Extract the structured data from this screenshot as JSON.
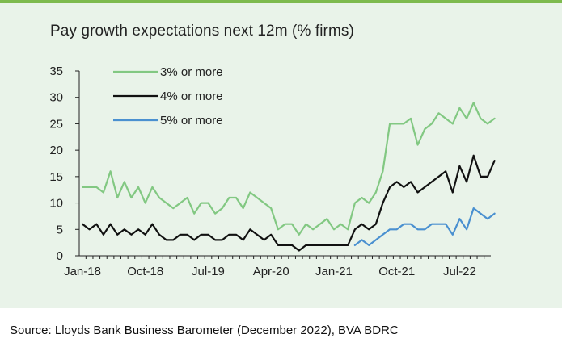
{
  "title": "Pay growth expectations next 12m (% firms)",
  "source": "Source: Lloyds Bank Business Barometer (December 2022), BVA BDRC",
  "colors": {
    "background": "#e9f3e9",
    "accent_rule": "#7dba4e"
  },
  "chart_data": {
    "type": "line",
    "title": "Pay growth expectations next 12m (% firms)",
    "xlabel": "",
    "ylabel": "",
    "ylim": [
      0,
      35
    ],
    "yticks": [
      "0",
      "5",
      "10",
      "15",
      "20",
      "25",
      "30",
      "35"
    ],
    "xtick_labels": [
      "Jan-18",
      "Oct-18",
      "Jul-19",
      "Apr-20",
      "Jan-21",
      "Oct-21",
      "Jul-22"
    ],
    "xtick_months": [
      "2018-01",
      "2018-10",
      "2019-07",
      "2020-04",
      "2021-01",
      "2021-10",
      "2022-07"
    ],
    "x_range": [
      "2018-01",
      "2022-11"
    ],
    "grid": false,
    "legend_position": "top-left",
    "series": [
      {
        "name": "3% or more",
        "color": "#82c882",
        "start": "2018-01",
        "values": [
          13,
          13,
          13,
          12,
          16,
          11,
          14,
          11,
          13,
          10,
          13,
          11,
          10,
          9,
          10,
          11,
          8,
          10,
          10,
          8,
          9,
          11,
          11,
          9,
          12,
          11,
          10,
          9,
          5,
          6,
          6,
          4,
          6,
          5,
          6,
          7,
          5,
          6,
          5,
          10,
          11,
          10,
          12,
          16,
          25,
          25,
          25,
          26,
          21,
          24,
          25,
          27,
          26,
          25,
          28,
          26,
          29,
          26,
          25,
          26
        ]
      },
      {
        "name": "4% or more",
        "color": "#111111",
        "start": "2018-01",
        "values": [
          6,
          5,
          6,
          4,
          6,
          4,
          5,
          4,
          5,
          4,
          6,
          4,
          3,
          3,
          4,
          4,
          3,
          4,
          4,
          3,
          3,
          4,
          4,
          3,
          5,
          4,
          3,
          4,
          2,
          2,
          2,
          1,
          2,
          2,
          2,
          2,
          2,
          2,
          2,
          5,
          6,
          5,
          6,
          10,
          13,
          14,
          13,
          14,
          12,
          13,
          14,
          15,
          16,
          12,
          17,
          14,
          19,
          15,
          15,
          18
        ]
      },
      {
        "name": "5% or more",
        "color": "#4a90d0",
        "start": "2021-04",
        "values": [
          2,
          3,
          2,
          3,
          4,
          5,
          5,
          6,
          6,
          5,
          5,
          6,
          6,
          6,
          4,
          7,
          5,
          9,
          8,
          7,
          8
        ]
      }
    ]
  }
}
